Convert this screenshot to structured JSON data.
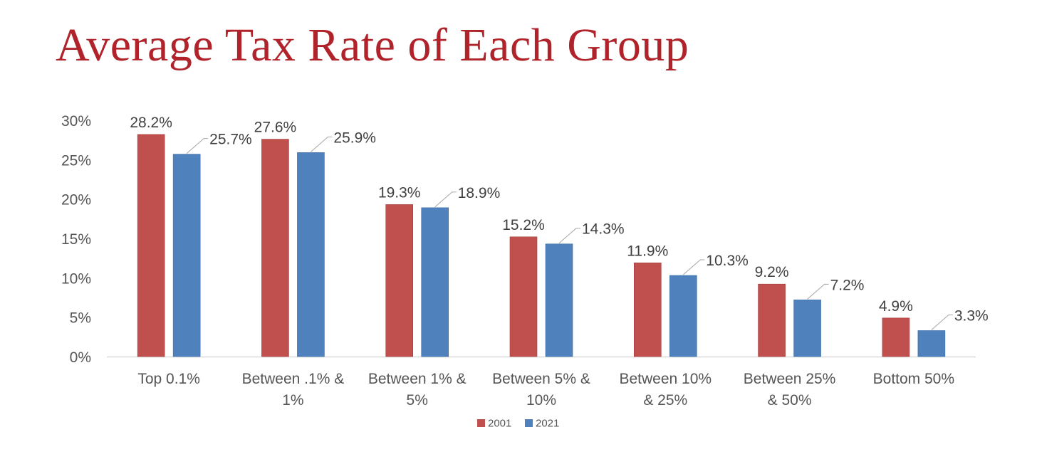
{
  "chart_data": {
    "type": "bar",
    "title": "Average Tax Rate of Each Group",
    "categories": [
      [
        "Top 0.1%"
      ],
      [
        "Between .1% &",
        "1%"
      ],
      [
        "Between 1% &",
        "5%"
      ],
      [
        "Between 5% &",
        "10%"
      ],
      [
        "Between 10%",
        "& 25%"
      ],
      [
        "Between 25%",
        "& 50%"
      ],
      [
        "Bottom 50%"
      ]
    ],
    "series": [
      {
        "name": "2001",
        "color": "#c0504d",
        "values": [
          28.2,
          27.6,
          19.3,
          15.2,
          11.9,
          9.2,
          4.9
        ],
        "labels": [
          "28.2%",
          "27.6%",
          "19.3%",
          "15.2%",
          "11.9%",
          "9.2%",
          "4.9%"
        ]
      },
      {
        "name": "2021",
        "color": "#4f81bd",
        "values": [
          25.7,
          25.9,
          18.9,
          14.3,
          10.3,
          7.2,
          3.3
        ],
        "labels": [
          "25.7%",
          "25.9%",
          "18.9%",
          "14.3%",
          "10.3%",
          "7.2%",
          "3.3%"
        ]
      }
    ],
    "ylim": [
      0,
      30
    ],
    "yticks": [
      "0%",
      "5%",
      "10%",
      "15%",
      "20%",
      "25%",
      "30%"
    ],
    "ytick_values": [
      0,
      5,
      10,
      15,
      20,
      25,
      30
    ],
    "grid": false,
    "legend_position": "bottom"
  }
}
